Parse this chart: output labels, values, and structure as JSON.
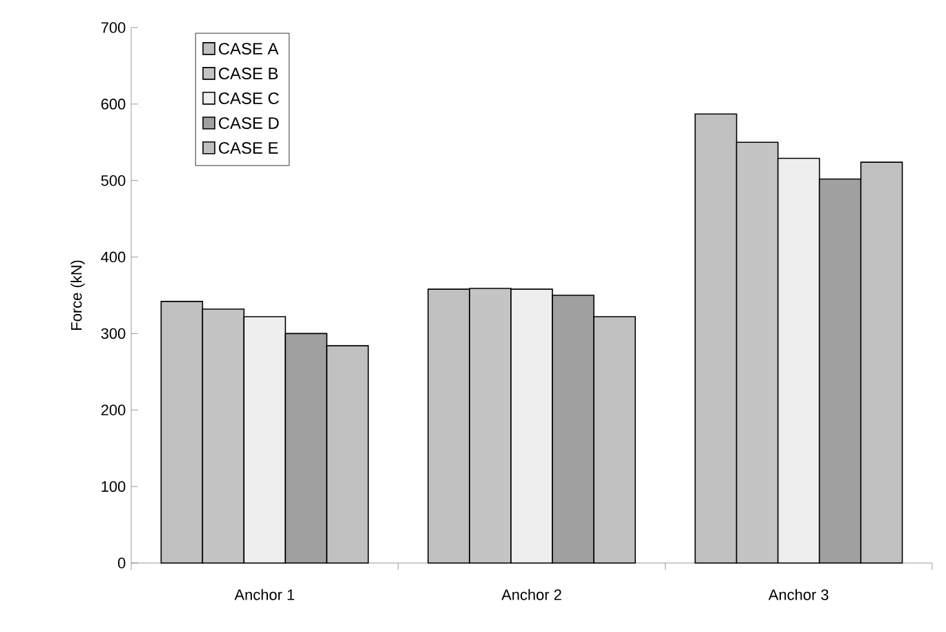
{
  "chart_data": {
    "type": "bar",
    "ylabel": "Force (kN)",
    "categories": [
      "Anchor 1",
      "Anchor 2",
      "Anchor 3"
    ],
    "series": [
      {
        "name": "CASE A",
        "color": "#c0c0c0",
        "values": [
          342,
          358,
          587
        ]
      },
      {
        "name": "CASE B",
        "color": "#c4c4c4",
        "values": [
          332,
          359,
          550
        ]
      },
      {
        "name": "CASE C",
        "color": "#eeeeee",
        "values": [
          322,
          358,
          529
        ]
      },
      {
        "name": "CASE D",
        "color": "#a0a0a0",
        "values": [
          300,
          350,
          502
        ]
      },
      {
        "name": "CASE E",
        "color": "#c0c0c0",
        "values": [
          284,
          322,
          524
        ]
      }
    ],
    "ylim": [
      0,
      700
    ],
    "yticks": [
      0,
      100,
      200,
      300,
      400,
      500,
      600,
      700
    ],
    "grid": false,
    "legend": "top left"
  }
}
